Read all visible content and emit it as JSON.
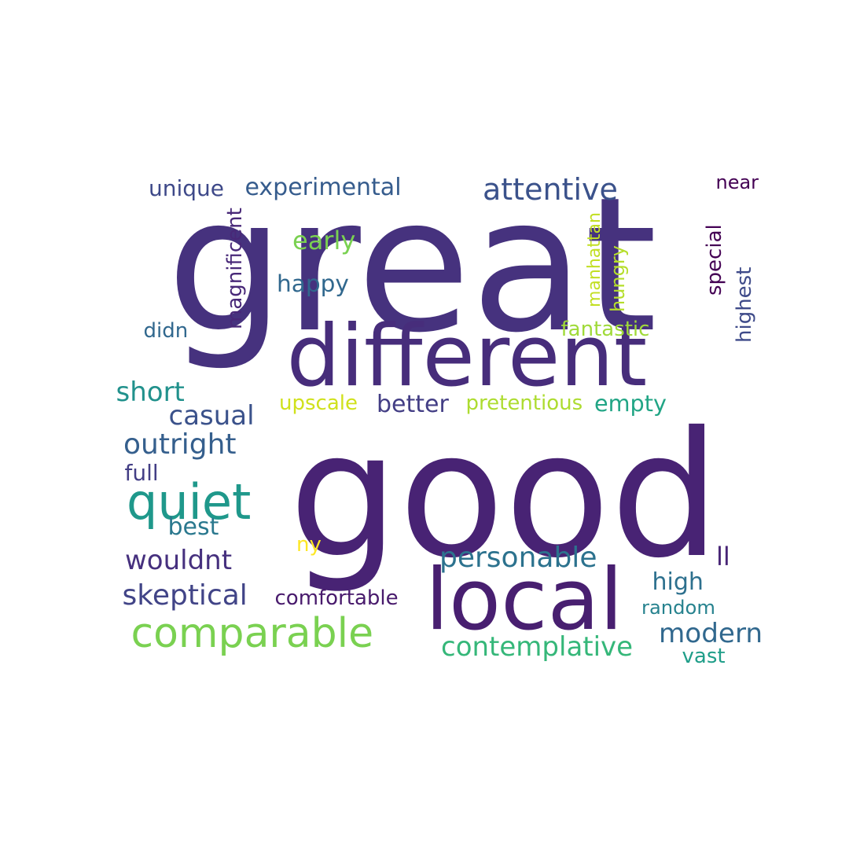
{
  "words": [
    {
      "text": "great",
      "color": "#46327e",
      "vertical": false
    },
    {
      "text": "good",
      "color": "#482374",
      "vertical": false
    },
    {
      "text": "different",
      "color": "#472d7b",
      "vertical": false
    },
    {
      "text": "local",
      "color": "#481f70",
      "vertical": false
    },
    {
      "text": "comparable",
      "color": "#7ad151",
      "vertical": false
    },
    {
      "text": "quiet",
      "color": "#1f988b",
      "vertical": false
    },
    {
      "text": "attentive",
      "color": "#3b528b",
      "vertical": false
    },
    {
      "text": "experimental",
      "color": "#365c8d",
      "vertical": false
    },
    {
      "text": "unique",
      "color": "#3e4989",
      "vertical": false
    },
    {
      "text": "early",
      "color": "#7ad151",
      "vertical": false
    },
    {
      "text": "happy",
      "color": "#31688e",
      "vertical": false
    },
    {
      "text": "didn",
      "color": "#31688e",
      "vertical": false
    },
    {
      "text": "magnificent",
      "color": "#482878",
      "vertical": true
    },
    {
      "text": "manhattan",
      "color": "#c2df23",
      "vertical": true
    },
    {
      "text": "hungry",
      "color": "#b5de2b",
      "vertical": true
    },
    {
      "text": "special",
      "color": "#440154",
      "vertical": true
    },
    {
      "text": "highest",
      "color": "#3e4a89",
      "vertical": true
    },
    {
      "text": "near",
      "color": "#440154",
      "vertical": false
    },
    {
      "text": "fantastic",
      "color": "#a0da39",
      "vertical": false
    },
    {
      "text": "short",
      "color": "#21918c",
      "vertical": false
    },
    {
      "text": "casual",
      "color": "#3b528b",
      "vertical": false
    },
    {
      "text": "upscale",
      "color": "#d0e11c",
      "vertical": false
    },
    {
      "text": "better",
      "color": "#433e85",
      "vertical": false
    },
    {
      "text": "pretentious",
      "color": "#addc30",
      "vertical": false
    },
    {
      "text": "empty",
      "color": "#21a585",
      "vertical": false
    },
    {
      "text": "outright",
      "color": "#355f8d",
      "vertical": false
    },
    {
      "text": "full",
      "color": "#433e85",
      "vertical": false
    },
    {
      "text": "best",
      "color": "#2a788e",
      "vertical": false
    },
    {
      "text": "ny",
      "color": "#fde725",
      "vertical": false
    },
    {
      "text": "wouldnt",
      "color": "#46307e",
      "vertical": false
    },
    {
      "text": "personable",
      "color": "#2c728e",
      "vertical": false
    },
    {
      "text": "ll",
      "color": "#482576",
      "vertical": false
    },
    {
      "text": "skeptical",
      "color": "#414487",
      "vertical": false
    },
    {
      "text": "comfortable",
      "color": "#481a6c",
      "vertical": false
    },
    {
      "text": "high",
      "color": "#2d708e",
      "vertical": false
    },
    {
      "text": "random",
      "color": "#26828e",
      "vertical": false
    },
    {
      "text": "contemplative",
      "color": "#35b779",
      "vertical": false
    },
    {
      "text": "modern",
      "color": "#31688e",
      "vertical": false
    },
    {
      "text": "vast",
      "color": "#1f9e89",
      "vertical": false
    }
  ]
}
